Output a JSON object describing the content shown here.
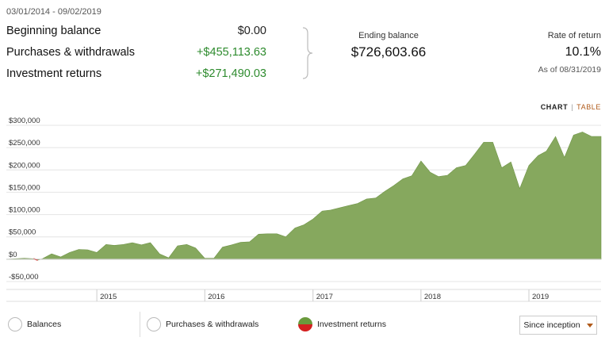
{
  "summary": {
    "date_range": "03/01/2014 - 09/02/2019",
    "beginning_balance_label": "Beginning balance",
    "beginning_balance_value": "$0.00",
    "purchases_label": "Purchases & withdrawals",
    "purchases_value": "+$455,113.63",
    "returns_label": "Investment returns",
    "returns_value": "+$271,490.03",
    "ending_balance_label": "Ending balance",
    "ending_balance_value": "$726,603.66",
    "rate_label": "Rate of return",
    "rate_value": "10.1%",
    "as_of": "As of 08/31/2019"
  },
  "view_toggle": {
    "chart": "CHART",
    "separator": "|",
    "table": "TABLE"
  },
  "legend": {
    "balances": "Balances",
    "purchases": "Purchases & withdrawals",
    "returns": "Investment returns"
  },
  "period_select": {
    "value": "Since inception"
  },
  "colors": {
    "area_fill": "#86a85e",
    "area_stroke": "#6f9447",
    "negative": "#d42020",
    "gain_text": "#2e8b2e",
    "accent": "#b05a1a"
  },
  "chart_data": {
    "type": "area",
    "title": "",
    "xlabel": "",
    "ylabel": "",
    "ylim": [
      -50000,
      300000
    ],
    "yticks": [
      -50000,
      0,
      50000,
      100000,
      150000,
      200000,
      250000,
      300000
    ],
    "ytick_labels": [
      "-$50,000",
      "$0",
      "$50,000",
      "$100,000",
      "$150,000",
      "$200,000",
      "$250,000",
      "$300,000"
    ],
    "xlim": [
      "2014-03-01",
      "2019-09-02"
    ],
    "xtick_dates": [
      "2015-01-01",
      "2016-01-01",
      "2017-01-01",
      "2018-01-01",
      "2019-01-01"
    ],
    "xtick_labels": [
      "2015",
      "2016",
      "2017",
      "2018",
      "2019"
    ],
    "grid": true,
    "series": [
      {
        "x": [
          "2014-03-01",
          "2014-05-01",
          "2014-06-01",
          "2014-06-15",
          "2014-07-01",
          "2014-08-01",
          "2014-09-01",
          "2014-10-01",
          "2014-11-01",
          "2014-12-01",
          "2015-01-01",
          "2015-02-01",
          "2015-03-01",
          "2015-04-01",
          "2015-05-01",
          "2015-06-01",
          "2015-07-01",
          "2015-08-01",
          "2015-09-01",
          "2015-10-01",
          "2015-11-01",
          "2015-12-01",
          "2016-01-01",
          "2016-02-01",
          "2016-03-01",
          "2016-04-01",
          "2016-05-01",
          "2016-06-01",
          "2016-07-01",
          "2016-08-01",
          "2016-09-01",
          "2016-10-01",
          "2016-11-01",
          "2016-12-01",
          "2017-01-01",
          "2017-02-01",
          "2017-03-01",
          "2017-04-01",
          "2017-05-01",
          "2017-06-01",
          "2017-07-01",
          "2017-08-01",
          "2017-09-01",
          "2017-10-01",
          "2017-11-01",
          "2017-12-01",
          "2018-01-01",
          "2018-02-01",
          "2018-03-01",
          "2018-04-01",
          "2018-05-01",
          "2018-06-01",
          "2018-07-01",
          "2018-08-01",
          "2018-09-01",
          "2018-10-01",
          "2018-11-01",
          "2018-12-01",
          "2019-01-01",
          "2019-02-01",
          "2019-03-01",
          "2019-04-01",
          "2019-05-01",
          "2019-06-01",
          "2019-07-01",
          "2019-08-01",
          "2019-09-02"
        ],
        "values": [
          0,
          2000,
          1000,
          -2000,
          1000,
          12000,
          5000,
          15000,
          22000,
          21000,
          15000,
          33000,
          31000,
          33000,
          37000,
          32000,
          37000,
          12000,
          3000,
          30000,
          33000,
          25000,
          2000,
          2000,
          27000,
          32000,
          38000,
          39000,
          56000,
          57000,
          57000,
          50000,
          70000,
          77000,
          90000,
          108000,
          110000,
          115000,
          120000,
          125000,
          135000,
          137000,
          152000,
          165000,
          180000,
          187000,
          220000,
          195000,
          185000,
          188000,
          205000,
          210000,
          235000,
          262000,
          262000,
          205000,
          218000,
          158000,
          210000,
          232000,
          242000,
          275000,
          228000,
          278000,
          285000,
          275000,
          275000
        ]
      }
    ]
  }
}
